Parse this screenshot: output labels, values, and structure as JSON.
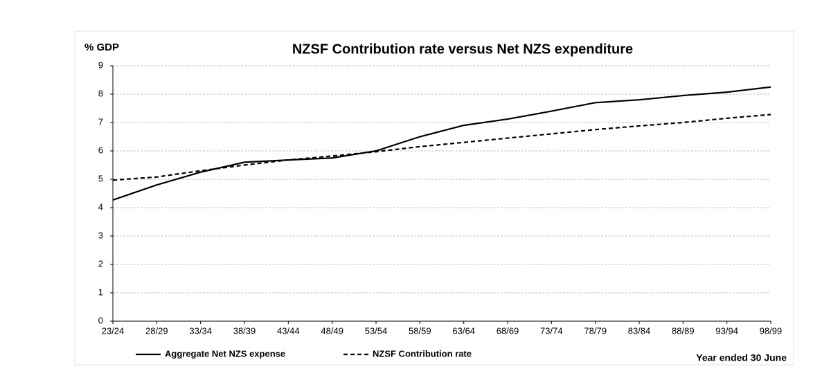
{
  "chart_data": {
    "type": "line",
    "title": "NZSF Contribution rate versus Net NZS expenditure",
    "y_label": "% GDP",
    "x_label": "Year ended 30 June",
    "categories": [
      "23/24",
      "28/29",
      "33/34",
      "38/39",
      "43/44",
      "48/49",
      "53/54",
      "58/59",
      "63/64",
      "68/69",
      "73/74",
      "78/79",
      "83/84",
      "88/89",
      "93/94",
      "98/99"
    ],
    "series": [
      {
        "name": "Aggregate Net NZS expense",
        "color": "#000000",
        "line_style": "solid",
        "values": [
          4.27,
          4.8,
          5.25,
          5.6,
          5.68,
          5.75,
          6.0,
          6.5,
          6.9,
          7.12,
          7.4,
          7.7,
          7.8,
          7.95,
          8.07,
          8.25
        ]
      },
      {
        "name": "NZSF Contribution rate",
        "color": "#000000",
        "line_style": "dashed",
        "values": [
          4.97,
          5.08,
          5.3,
          5.5,
          5.68,
          5.82,
          5.97,
          6.15,
          6.3,
          6.45,
          6.6,
          6.75,
          6.88,
          7.0,
          7.15,
          7.28
        ]
      }
    ],
    "ylim": [
      0,
      9
    ],
    "yticks": [
      0,
      1,
      2,
      3,
      4,
      5,
      6,
      7,
      8,
      9
    ],
    "grid": true,
    "legend": "bottom"
  }
}
